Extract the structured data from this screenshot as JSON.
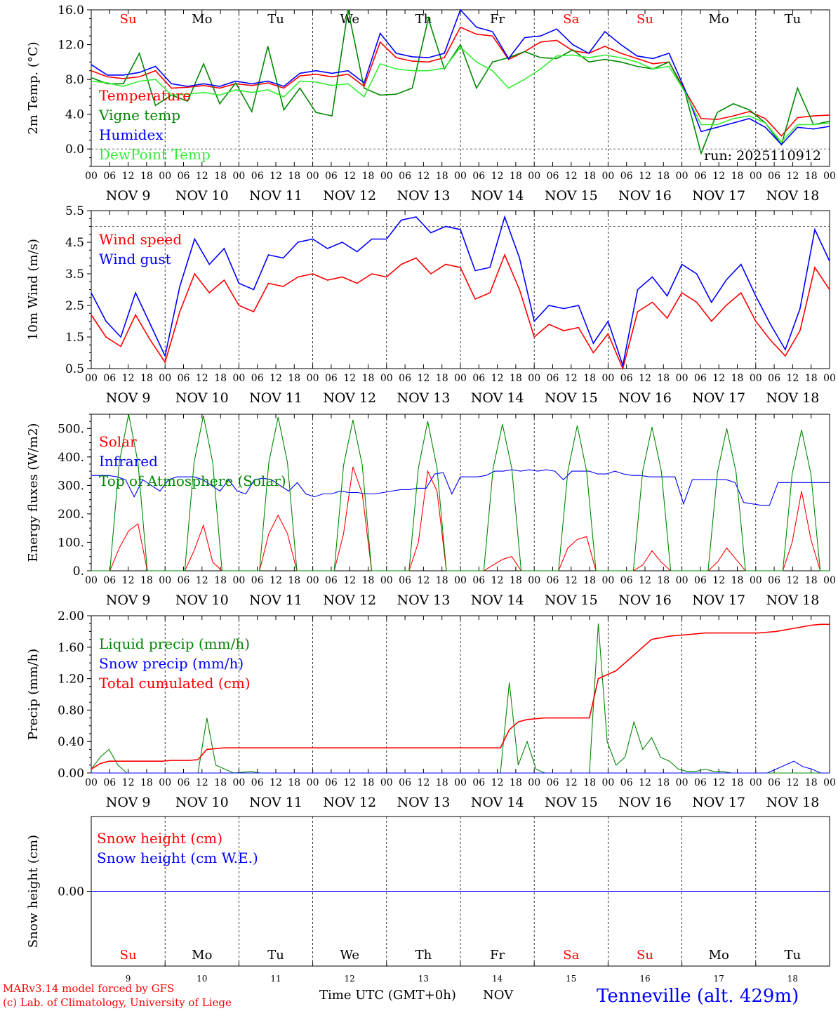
{
  "colors": {
    "red": "#ff0000",
    "green": "#008800",
    "blue": "#0000ff",
    "light_green": "#33ee33",
    "black": "#000000",
    "grey": "#666666"
  },
  "day_names": [
    "Su",
    "Mo",
    "Tu",
    "We",
    "Th",
    "Fr",
    "Sa",
    "Su",
    "Mo",
    "Tu"
  ],
  "day_numbers": [
    "9",
    "10",
    "11",
    "12",
    "13",
    "14",
    "15",
    "16",
    "17",
    "18"
  ],
  "date_labels": [
    "NOV  9",
    "NOV 10",
    "NOV 11",
    "NOV 12",
    "NOV 13",
    "NOV 14",
    "NOV 15",
    "NOV 16",
    "NOV 17",
    "NOV 18"
  ],
  "hour_ticks": [
    "00",
    "06",
    "12",
    "18"
  ],
  "run_label": "run: 2025110912",
  "footer": {
    "model_line": "MARv3.14 model forced by GFS",
    "lab_line": "(c) Lab. of Climatology, University of Liege",
    "time_axis": "Time UTC (GMT+0h)",
    "month": "NOV",
    "station": "Tenneville (alt. 429m)"
  },
  "chart_data": [
    {
      "type": "line",
      "ylabel": "2m Temp. (°C)",
      "ylim": [
        -2,
        16
      ],
      "yticks": [
        "0.0",
        "4.0",
        "8.0",
        "12.0",
        "16.0"
      ],
      "x_hours_step": 6,
      "series": [
        {
          "name": "Temperature",
          "color": "red",
          "values": [
            9.0,
            8.3,
            8.1,
            8.3,
            9.0,
            7.0,
            7.1,
            7.3,
            7.0,
            7.5,
            7.3,
            7.6,
            7.0,
            8.4,
            8.6,
            8.3,
            8.6,
            7.2,
            12.3,
            10.5,
            10.1,
            10.0,
            10.5,
            14.0,
            13.2,
            13.0,
            10.3,
            11.2,
            12.3,
            12.5,
            11.3,
            11.0,
            11.8,
            11.0,
            10.4,
            9.8,
            10.0,
            6.7,
            3.5,
            3.4,
            3.8,
            4.3,
            3.5,
            1.5,
            3.6,
            3.8,
            3.9
          ]
        },
        {
          "name": "Vigne temp",
          "color": "green",
          "values": [
            8.2,
            7.5,
            7.5,
            11.0,
            5.0,
            6.2,
            5.5,
            9.8,
            5.2,
            7.6,
            4.3,
            11.8,
            4.5,
            7.0,
            4.2,
            3.8,
            16.0,
            7.0,
            6.2,
            6.3,
            7.0,
            15.0,
            9.2,
            12.0,
            7.0,
            10.0,
            10.5,
            11.2,
            10.5,
            10.4,
            11.4,
            10.0,
            10.3,
            10.0,
            9.5,
            9.2,
            10.0,
            6.5,
            -0.5,
            4.2,
            5.2,
            4.5,
            3.0,
            0.5,
            7.0,
            2.8,
            3.2
          ]
        },
        {
          "name": "Humidex",
          "color": "blue",
          "values": [
            9.7,
            8.5,
            8.5,
            8.8,
            9.5,
            7.5,
            7.2,
            7.5,
            7.2,
            7.8,
            7.5,
            7.8,
            7.2,
            8.7,
            9.0,
            8.7,
            9.0,
            7.6,
            13.3,
            11.0,
            10.6,
            10.5,
            11.0,
            16.0,
            14.0,
            13.5,
            10.4,
            12.8,
            13.0,
            13.8,
            12.0,
            11.0,
            13.5,
            12.0,
            10.7,
            10.4,
            11.0,
            6.8,
            2.0,
            2.5,
            3.0,
            3.5,
            2.5,
            0.5,
            2.5,
            2.3,
            2.6
          ]
        },
        {
          "name": "DewPoint Temp",
          "color": "light_green",
          "values": [
            7.8,
            7.6,
            7.2,
            7.8,
            8.0,
            6.2,
            6.3,
            6.5,
            6.2,
            6.8,
            6.5,
            6.8,
            6.0,
            7.8,
            7.7,
            7.3,
            7.5,
            6.0,
            9.8,
            9.2,
            9.0,
            9.0,
            9.3,
            11.7,
            10.0,
            9.0,
            7.0,
            8.0,
            9.2,
            10.7,
            10.8,
            10.5,
            10.8,
            10.5,
            10.0,
            9.2,
            9.5,
            6.5,
            2.8,
            2.8,
            3.5,
            3.8,
            3.0,
            0.8,
            2.8,
            2.8,
            3.0
          ]
        }
      ]
    },
    {
      "type": "line",
      "ylabel": "10m Wind (m/s)",
      "ylim": [
        0.5,
        5.5
      ],
      "yticks": [
        "0.5",
        "1.5",
        "2.5",
        "3.5",
        "4.5",
        "5.5"
      ],
      "reference_line": 5.0,
      "x_hours_step": 6,
      "series": [
        {
          "name": "Wind speed",
          "color": "red",
          "values": [
            2.2,
            1.5,
            1.2,
            2.2,
            1.4,
            0.7,
            2.3,
            3.5,
            2.9,
            3.3,
            2.5,
            2.3,
            3.2,
            3.1,
            3.4,
            3.5,
            3.3,
            3.4,
            3.2,
            3.5,
            3.4,
            3.8,
            4.0,
            3.5,
            3.8,
            3.7,
            2.7,
            2.9,
            4.1,
            3.0,
            1.5,
            1.9,
            1.7,
            1.8,
            1.0,
            1.6,
            0.5,
            2.3,
            2.6,
            2.1,
            2.9,
            2.6,
            2.0,
            2.5,
            2.9,
            2.0,
            1.4,
            0.9,
            1.7,
            3.7,
            3.0
          ]
        },
        {
          "name": "Wind gust",
          "color": "blue",
          "values": [
            2.9,
            2.0,
            1.5,
            2.9,
            1.9,
            0.9,
            3.1,
            4.6,
            3.8,
            4.3,
            3.2,
            3.0,
            4.1,
            4.0,
            4.5,
            4.6,
            4.3,
            4.5,
            4.2,
            4.6,
            4.6,
            5.2,
            5.3,
            4.8,
            5.0,
            4.9,
            3.6,
            3.7,
            5.3,
            4.0,
            2.0,
            2.5,
            2.4,
            2.5,
            1.3,
            2.0,
            0.6,
            3.0,
            3.4,
            2.8,
            3.8,
            3.5,
            2.6,
            3.3,
            3.8,
            2.8,
            1.9,
            1.1,
            2.4,
            4.9,
            3.9
          ]
        }
      ]
    },
    {
      "type": "line",
      "ylabel": "Energy fluxes (W/m2)",
      "ylim": [
        0,
        550
      ],
      "yticks": [
        "0.",
        "100.",
        "200.",
        "300.",
        "400.",
        "500."
      ],
      "x_hours_step": 3,
      "series": [
        {
          "name": "Solar",
          "color": "red",
          "values": [
            0,
            0,
            0,
            80,
            140,
            165,
            0,
            0,
            0,
            0,
            0,
            70,
            160,
            30,
            0,
            0,
            0,
            0,
            0,
            130,
            195,
            130,
            0,
            0,
            0,
            0,
            0,
            130,
            365,
            270,
            0,
            0,
            0,
            0,
            0,
            100,
            350,
            280,
            0,
            0,
            0,
            0,
            0,
            20,
            40,
            50,
            0,
            0,
            0,
            0,
            0,
            80,
            110,
            120,
            0,
            0,
            0,
            0,
            0,
            20,
            70,
            30,
            0,
            0,
            0,
            0,
            0,
            30,
            80,
            40,
            0,
            0,
            0,
            0,
            0,
            100,
            280,
            110,
            0,
            0
          ]
        },
        {
          "name": "Infrared",
          "color": "blue",
          "values": [
            335,
            335,
            335,
            330,
            320,
            260,
            320,
            300,
            280,
            320,
            330,
            330,
            330,
            320,
            300,
            280,
            320,
            280,
            270,
            320,
            325,
            320,
            300,
            280,
            310,
            270,
            260,
            270,
            270,
            280,
            275,
            275,
            270,
            270,
            275,
            280,
            285,
            285,
            290,
            290,
            340,
            345,
            270,
            330,
            330,
            330,
            335,
            350,
            350,
            355,
            350,
            355,
            350,
            355,
            350,
            320,
            350,
            350,
            350,
            340,
            340,
            350,
            340,
            335,
            335,
            330,
            330,
            330,
            330,
            235,
            320,
            320,
            320,
            320,
            320,
            310,
            240,
            235,
            230,
            230,
            310,
            310,
            310,
            310,
            310,
            310,
            310
          ]
        },
        {
          "name": "Top of Atmosphere (Solar)",
          "color": "green",
          "values": [
            0,
            0,
            0,
            380,
            550,
            380,
            0,
            0,
            0,
            0,
            0,
            380,
            545,
            380,
            0,
            0,
            0,
            0,
            0,
            380,
            540,
            380,
            0,
            0,
            0,
            0,
            0,
            370,
            530,
            370,
            0,
            0,
            0,
            0,
            0,
            360,
            525,
            360,
            0,
            0,
            0,
            0,
            0,
            360,
            515,
            360,
            0,
            0,
            0,
            0,
            0,
            350,
            510,
            350,
            0,
            0,
            0,
            0,
            0,
            350,
            505,
            350,
            0,
            0,
            0,
            0,
            0,
            345,
            500,
            345,
            0,
            0,
            0,
            0,
            0,
            340,
            495,
            340,
            0,
            0
          ]
        }
      ]
    },
    {
      "type": "line",
      "ylabel": "Precip (mm/h)",
      "ylim": [
        0,
        2
      ],
      "yticks": [
        "0.00",
        "0.40",
        "0.80",
        "1.20",
        "1.60",
        "2.00"
      ],
      "x_hours_step": 3,
      "series": [
        {
          "name": "Liquid precip (mm/h)",
          "color": "green",
          "values": [
            0.05,
            0.2,
            0.3,
            0.1,
            0,
            0,
            0,
            0,
            0,
            0,
            0,
            0,
            0,
            0.7,
            0.1,
            0.05,
            0,
            0.01,
            0.02,
            0,
            0,
            0,
            0,
            0,
            0,
            0,
            0,
            0,
            0,
            0,
            0,
            0,
            0,
            0,
            0,
            0,
            0,
            0,
            0,
            0,
            0,
            0,
            0,
            0,
            0,
            0,
            0,
            1.15,
            0.1,
            0.4,
            0.05,
            0,
            0,
            0,
            0,
            0,
            0,
            1.9,
            0.4,
            0.1,
            0.2,
            0.65,
            0.3,
            0.45,
            0.2,
            0.15,
            0.05,
            0.02,
            0.02,
            0.05,
            0.02,
            0.02,
            0,
            0,
            0,
            0,
            0,
            0,
            0,
            0,
            0,
            0,
            0,
            0
          ]
        },
        {
          "name": "Snow precip (mm/h)",
          "color": "blue",
          "values": [
            0,
            0,
            0,
            0,
            0,
            0,
            0,
            0,
            0,
            0,
            0,
            0,
            0,
            0,
            0,
            0,
            0,
            0,
            0,
            0,
            0,
            0,
            0,
            0,
            0,
            0,
            0,
            0,
            0,
            0,
            0,
            0,
            0,
            0,
            0,
            0,
            0,
            0,
            0,
            0,
            0,
            0,
            0,
            0,
            0,
            0,
            0,
            0,
            0,
            0,
            0,
            0,
            0,
            0,
            0,
            0,
            0,
            0,
            0,
            0,
            0,
            0,
            0,
            0,
            0,
            0,
            0,
            0,
            0,
            0,
            0,
            0,
            0,
            0,
            0,
            0,
            0,
            0.05,
            0.1,
            0.15,
            0.08,
            0.05,
            0,
            0
          ]
        },
        {
          "name": "Total cumulated (cm)",
          "color": "red",
          "values": [
            0.05,
            0.12,
            0.15,
            0.15,
            0.15,
            0.15,
            0.15,
            0.15,
            0.15,
            0.16,
            0.16,
            0.16,
            0.17,
            0.3,
            0.31,
            0.32,
            0.32,
            0.32,
            0.32,
            0.32,
            0.32,
            0.32,
            0.32,
            0.32,
            0.32,
            0.32,
            0.32,
            0.32,
            0.32,
            0.32,
            0.32,
            0.32,
            0.32,
            0.32,
            0.32,
            0.32,
            0.32,
            0.32,
            0.32,
            0.32,
            0.32,
            0.32,
            0.32,
            0.32,
            0.32,
            0.32,
            0.32,
            0.55,
            0.65,
            0.68,
            0.69,
            0.7,
            0.7,
            0.7,
            0.7,
            0.7,
            0.7,
            1.2,
            1.25,
            1.3,
            1.4,
            1.5,
            1.6,
            1.7,
            1.72,
            1.74,
            1.75,
            1.76,
            1.77,
            1.78,
            1.78,
            1.78,
            1.78,
            1.78,
            1.78,
            1.78,
            1.79,
            1.8,
            1.82,
            1.84,
            1.86,
            1.88,
            1.89,
            1.89
          ]
        }
      ]
    },
    {
      "type": "line",
      "ylabel": "Snow height (cm)",
      "ylim": [
        -1,
        1
      ],
      "yticks": [
        "0.00"
      ],
      "x_hours_step": 240,
      "series": [
        {
          "name": "Snow height (cm)",
          "color": "red",
          "values": [
            0,
            0
          ]
        },
        {
          "name": "Snow height (cm W.E.)",
          "color": "blue",
          "values": [
            0,
            0
          ]
        }
      ]
    }
  ]
}
